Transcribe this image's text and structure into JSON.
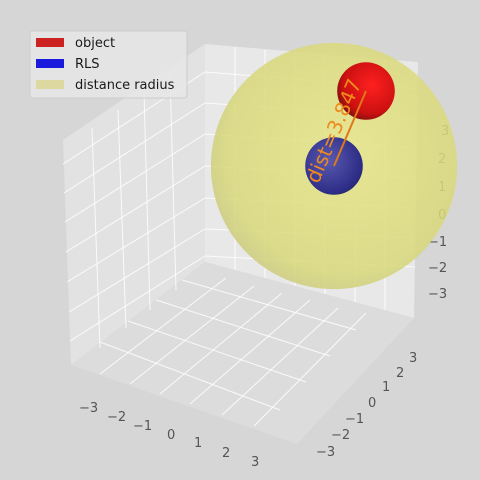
{
  "chart_data": {
    "type": "scatter",
    "title": "",
    "projection": "3d",
    "xlim": [
      -3.5,
      3.5
    ],
    "ylim": [
      -3.5,
      3.5
    ],
    "zlim": [
      -3.5,
      3.5
    ],
    "x_ticks": [
      "−3",
      "−2",
      "−1",
      "0",
      "1",
      "2",
      "3"
    ],
    "y_ticks": [
      "−3",
      "−2",
      "−1",
      "0",
      "1",
      "2",
      "3"
    ],
    "z_ticks": [
      "−3",
      "−2",
      "−1",
      "0",
      "1",
      "2",
      "3"
    ],
    "legend": {
      "placement": "top-left",
      "entries": [
        {
          "label": "object",
          "color": "#cc2222"
        },
        {
          "label": "RLS",
          "color": "#1a1adc"
        },
        {
          "label": "distance radius",
          "color": "#ddd8a0"
        }
      ]
    },
    "spheres": [
      {
        "name": "distance radius",
        "center": [
          0,
          0,
          0
        ],
        "radius": 3.847,
        "color": "#dcdc7a",
        "opacity": 0.7
      },
      {
        "name": "RLS",
        "center": [
          0,
          0,
          0
        ],
        "radius": 0.9,
        "color": "#33338a"
      },
      {
        "name": "object",
        "center": [
          2,
          2,
          2.5
        ],
        "radius": 0.9,
        "color": "#c41010"
      }
    ],
    "annotation": {
      "text": "dist=3.847",
      "color": "#f08a1c"
    },
    "line_color": "#e07818"
  }
}
